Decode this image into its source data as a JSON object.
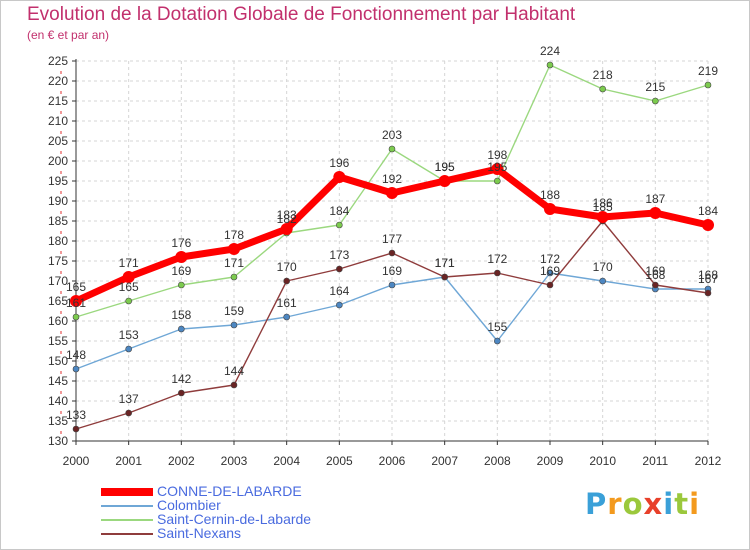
{
  "title": "Evolution de la Dotation Globale de Fonctionnement par Habitant",
  "subtitle": "(en € et par an)",
  "logo": {
    "p": "P",
    "r": "r",
    "o": "o",
    "x": "x",
    "i": "i",
    "t": "t",
    "i2": "i"
  },
  "colors": {
    "grid": "#d6d6d6",
    "axis": "#333333",
    "label": "#333333",
    "tick_accent": "#e03030"
  },
  "chart_data": {
    "type": "line",
    "title": "Evolution de la Dotation Globale de Fonctionnement par Habitant",
    "subtitle": "(en € et par an)",
    "x": [
      "2000",
      "2001",
      "2002",
      "2003",
      "2004",
      "2005",
      "2006",
      "2007",
      "2008",
      "2009",
      "2010",
      "2011",
      "2012"
    ],
    "ylim": [
      130,
      225
    ],
    "yticks": [
      130,
      135,
      140,
      145,
      150,
      155,
      160,
      165,
      170,
      175,
      180,
      185,
      190,
      195,
      200,
      205,
      210,
      215,
      220,
      225
    ],
    "grid": true,
    "legend_position": "bottom-left",
    "series": [
      {
        "name": "CONNE-DE-LABARDE",
        "color": "#ff0000",
        "marker_color": "#ff0000",
        "width": 7,
        "values": [
          165,
          171,
          176,
          178,
          183,
          196,
          192,
          195,
          198,
          188,
          186,
          187,
          184
        ]
      },
      {
        "name": "Colombier",
        "color": "#6fa7d6",
        "marker_color": "#4d87c2",
        "width": 1.4,
        "values": [
          148,
          153,
          158,
          159,
          161,
          164,
          169,
          171,
          155,
          172,
          170,
          168,
          168
        ]
      },
      {
        "name": "Saint-Cernin-de-Labarde",
        "color": "#9bd87f",
        "marker_color": "#7ccb4e",
        "width": 1.4,
        "values": [
          161,
          165,
          169,
          171,
          182,
          184,
          203,
          195,
          195,
          224,
          218,
          215,
          219
        ]
      },
      {
        "name": "Saint-Nexans",
        "color": "#8f3c3c",
        "marker_color": "#6a2424",
        "width": 1.4,
        "values": [
          133,
          137,
          142,
          144,
          170,
          173,
          177,
          171,
          172,
          169,
          185,
          169,
          167
        ]
      }
    ]
  }
}
